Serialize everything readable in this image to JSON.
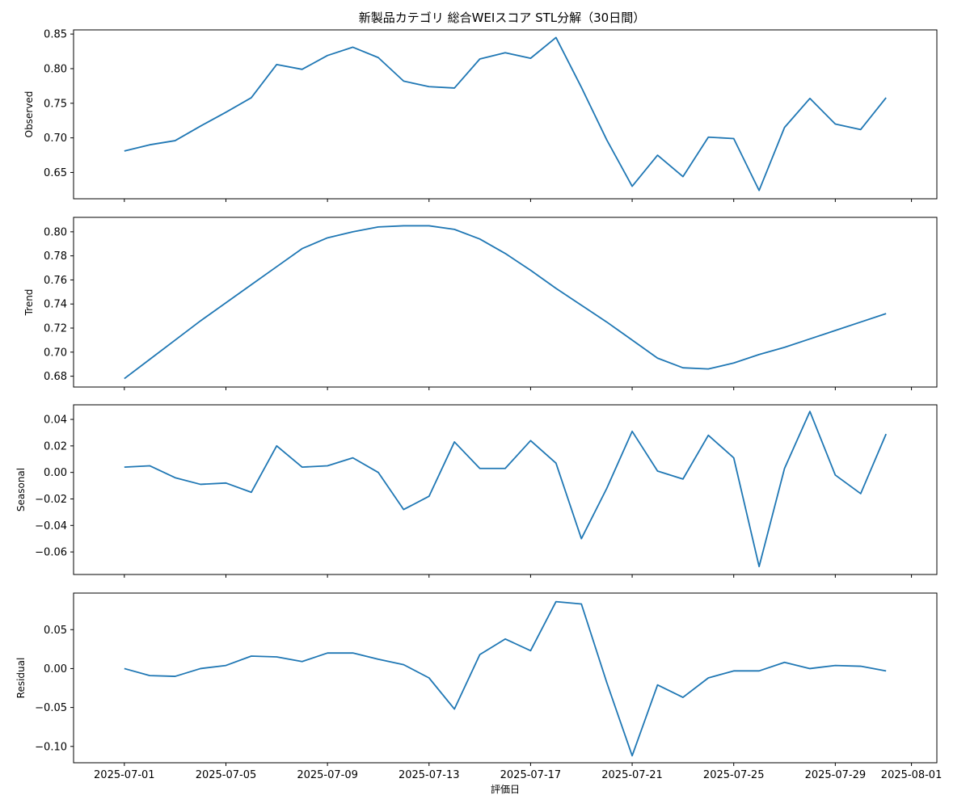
{
  "chart_data": {
    "type": "line",
    "title": "新製品カテゴリ 総合WEIスコア STL分解（30日間）",
    "xlabel": "評価日",
    "x_tick_labels": [
      "2025-07-01",
      "2025-07-05",
      "2025-07-09",
      "2025-07-13",
      "2025-07-17",
      "2025-07-21",
      "2025-07-25",
      "2025-07-29",
      "2025-08-01"
    ],
    "x_tick_dates": [
      "2025-07-01",
      "2025-07-05",
      "2025-07-09",
      "2025-07-13",
      "2025-07-17",
      "2025-07-21",
      "2025-07-25",
      "2025-07-29",
      "2025-08-01"
    ],
    "x": [
      "2025-07-01",
      "2025-07-02",
      "2025-07-03",
      "2025-07-04",
      "2025-07-05",
      "2025-07-06",
      "2025-07-07",
      "2025-07-08",
      "2025-07-09",
      "2025-07-10",
      "2025-07-11",
      "2025-07-12",
      "2025-07-13",
      "2025-07-14",
      "2025-07-15",
      "2025-07-16",
      "2025-07-17",
      "2025-07-18",
      "2025-07-19",
      "2025-07-20",
      "2025-07-21",
      "2025-07-22",
      "2025-07-23",
      "2025-07-24",
      "2025-07-25",
      "2025-07-26",
      "2025-07-27",
      "2025-07-28",
      "2025-07-29",
      "2025-07-30",
      "2025-07-31"
    ],
    "xlim": [
      "2025-06-29",
      "2025-08-02"
    ],
    "line_color": "#1f77b4",
    "grid": false,
    "panels": [
      {
        "ylabel": "Observed",
        "ylim": [
          0.612,
          0.856
        ],
        "yticks": [
          "0.65",
          "0.70",
          "0.75",
          "0.80",
          "0.85"
        ],
        "ytick_values": [
          0.65,
          0.7,
          0.75,
          0.8,
          0.85
        ],
        "values": [
          0.681,
          0.69,
          0.696,
          0.717,
          0.737,
          0.758,
          0.806,
          0.799,
          0.819,
          0.831,
          0.816,
          0.782,
          0.774,
          0.772,
          0.814,
          0.823,
          0.815,
          0.845,
          0.773,
          0.697,
          0.63,
          0.675,
          0.644,
          0.701,
          0.699,
          0.624,
          0.715,
          0.757,
          0.72,
          0.712,
          0.758
        ]
      },
      {
        "ylabel": "Trend",
        "ylim": [
          0.671,
          0.812
        ],
        "yticks": [
          "0.68",
          "0.70",
          "0.72",
          "0.74",
          "0.76",
          "0.78",
          "0.80"
        ],
        "ytick_values": [
          0.68,
          0.7,
          0.72,
          0.74,
          0.76,
          0.78,
          0.8
        ],
        "values": [
          0.678,
          0.694,
          0.71,
          0.726,
          0.741,
          0.756,
          0.771,
          0.786,
          0.795,
          0.8,
          0.804,
          0.805,
          0.805,
          0.802,
          0.794,
          0.782,
          0.768,
          0.753,
          0.739,
          0.725,
          0.71,
          0.695,
          0.687,
          0.686,
          0.691,
          0.698,
          0.704,
          0.711,
          0.718,
          0.725,
          0.732
        ]
      },
      {
        "ylabel": "Seasonal",
        "ylim": [
          -0.077,
          0.051
        ],
        "yticks": [
          "−0.06",
          "−0.04",
          "−0.02",
          "0.00",
          "0.02",
          "0.04"
        ],
        "ytick_values": [
          -0.06,
          -0.04,
          -0.02,
          0.0,
          0.02,
          0.04
        ],
        "values": [
          0.004,
          0.005,
          -0.004,
          -0.009,
          -0.008,
          -0.015,
          0.02,
          0.004,
          0.005,
          0.011,
          0.0,
          -0.028,
          -0.018,
          0.023,
          0.003,
          0.003,
          0.024,
          0.007,
          -0.05,
          -0.012,
          0.031,
          0.001,
          -0.005,
          0.028,
          0.011,
          -0.071,
          0.003,
          0.046,
          -0.002,
          -0.016,
          0.029
        ]
      },
      {
        "ylabel": "Residual",
        "ylim": [
          -0.121,
          0.097
        ],
        "yticks": [
          "−0.10",
          "−0.05",
          "0.00",
          "0.05"
        ],
        "ytick_values": [
          -0.1,
          -0.05,
          0.0,
          0.05
        ],
        "values": [
          0.0,
          -0.009,
          -0.01,
          0.0,
          0.004,
          0.016,
          0.015,
          0.009,
          0.02,
          0.02,
          0.012,
          0.005,
          -0.012,
          -0.052,
          0.018,
          0.038,
          0.023,
          0.086,
          0.083,
          -0.018,
          -0.112,
          -0.021,
          -0.037,
          -0.012,
          -0.003,
          -0.003,
          0.008,
          0.0,
          0.004,
          0.003,
          -0.003
        ]
      }
    ]
  }
}
